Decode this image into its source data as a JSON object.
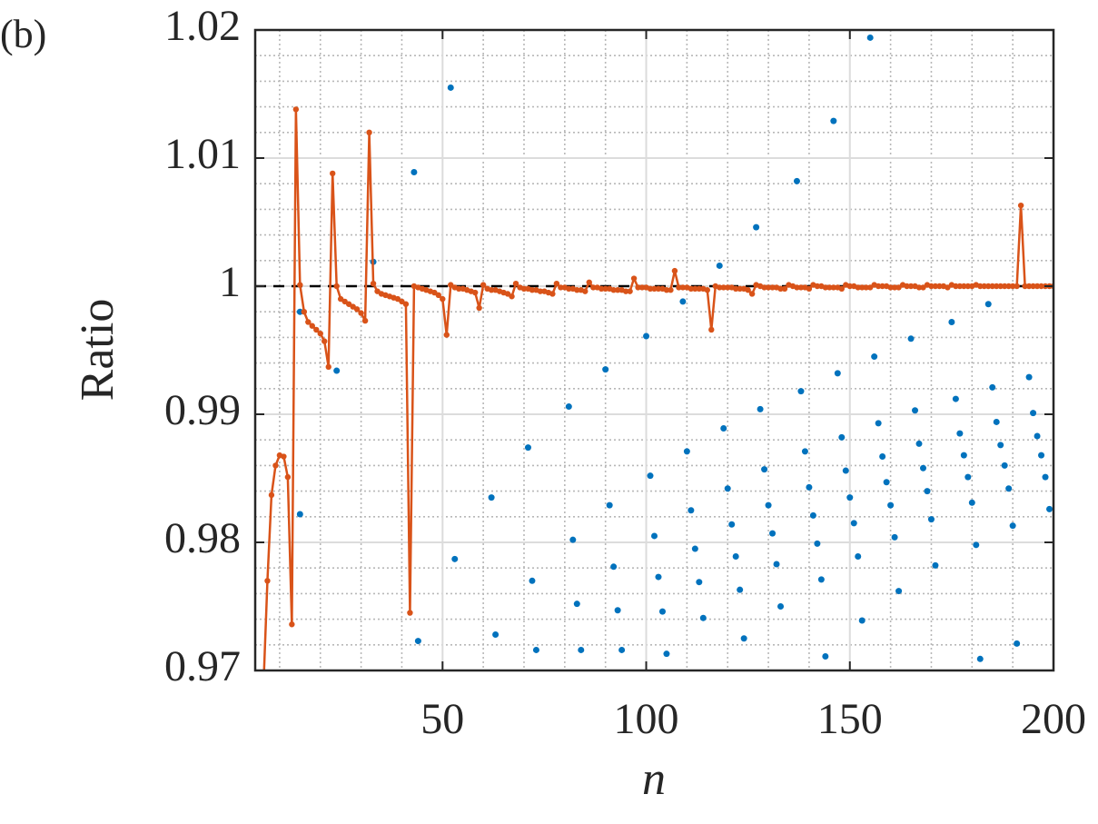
{
  "chart_data": {
    "type": "line",
    "panel_label": "(b)",
    "xlabel": "n",
    "ylabel": "Ratio",
    "xlim": [
      4,
      200
    ],
    "ylim": [
      0.97,
      1.02
    ],
    "xticks": [
      50,
      100,
      150,
      200
    ],
    "yticks": [
      0.97,
      0.98,
      0.99,
      1,
      1.01,
      1.02
    ],
    "grid": true,
    "minor_grid": true,
    "reference_line": {
      "y": 1,
      "color": "#000000",
      "style": "dashed"
    },
    "series": [
      {
        "type": "scatter",
        "color": "#0072bd",
        "x": [
          15,
          15,
          24,
          33,
          43,
          44,
          52,
          53,
          62,
          63,
          71,
          72,
          73,
          81,
          82,
          83,
          84,
          90,
          91,
          92,
          93,
          94,
          100,
          101,
          102,
          103,
          104,
          105,
          109,
          110,
          111,
          112,
          113,
          114,
          118,
          119,
          120,
          121,
          122,
          123,
          124,
          127,
          128,
          129,
          130,
          131,
          132,
          133,
          137,
          138,
          139,
          140,
          141,
          142,
          143,
          144,
          146,
          147,
          148,
          149,
          150,
          151,
          152,
          153,
          155,
          156,
          157,
          158,
          159,
          160,
          161,
          162,
          165,
          166,
          167,
          168,
          169,
          170,
          171,
          175,
          176,
          177,
          178,
          179,
          180,
          181,
          182,
          184,
          185,
          186,
          187,
          188,
          189,
          190,
          191,
          194,
          195,
          196,
          197,
          198,
          199
        ],
        "values": [
          0.998,
          0.9822,
          0.9934,
          1.0019,
          1.0089,
          0.9723,
          1.0155,
          0.9787,
          0.9835,
          0.9728,
          0.9874,
          0.977,
          0.9716,
          0.9906,
          0.9802,
          0.9752,
          0.9716,
          0.9935,
          0.9829,
          0.9781,
          0.9747,
          0.9716,
          0.9961,
          0.9852,
          0.9805,
          0.9773,
          0.9746,
          0.9713,
          0.9988,
          0.9871,
          0.9825,
          0.9795,
          0.9769,
          0.9741,
          1.0016,
          0.9889,
          0.9842,
          0.9814,
          0.9789,
          0.9763,
          0.9725,
          1.0046,
          0.9904,
          0.9857,
          0.9829,
          0.9807,
          0.9783,
          0.975,
          1.0082,
          0.9918,
          0.9871,
          0.9843,
          0.9821,
          0.9799,
          0.9771,
          0.9711,
          1.0129,
          0.9932,
          0.9882,
          0.9856,
          0.9835,
          0.9815,
          0.9789,
          0.9739,
          1.0194,
          0.9945,
          0.9893,
          0.9867,
          0.9847,
          0.9829,
          0.9804,
          0.9762,
          0.9959,
          0.9903,
          0.9877,
          0.9858,
          0.984,
          0.9818,
          0.9782,
          0.9972,
          0.9912,
          0.9885,
          0.9868,
          0.9851,
          0.9831,
          0.9798,
          0.9709,
          0.9986,
          0.9921,
          0.9894,
          0.9876,
          0.986,
          0.9842,
          0.9813,
          0.9721,
          0.9929,
          0.9901,
          0.9883,
          0.9868,
          0.9851,
          0.9826
        ]
      },
      {
        "type": "line",
        "color": "#d95319",
        "x": [
          6,
          7,
          8,
          9,
          10,
          11,
          12,
          13,
          14,
          15,
          16,
          17,
          18,
          19,
          20,
          21,
          22,
          23,
          24,
          25,
          26,
          27,
          28,
          29,
          30,
          31,
          32,
          33,
          34,
          35,
          36,
          37,
          38,
          39,
          40,
          41,
          42,
          43,
          44,
          45,
          46,
          47,
          48,
          49,
          50,
          51,
          52,
          53,
          54,
          55,
          56,
          57,
          58,
          59,
          60,
          61,
          62,
          63,
          64,
          65,
          66,
          67,
          68,
          69,
          70,
          71,
          72,
          73,
          74,
          75,
          76,
          77,
          78,
          79,
          80,
          81,
          82,
          83,
          84,
          85,
          86,
          87,
          88,
          89,
          90,
          91,
          92,
          93,
          94,
          95,
          96,
          97,
          98,
          99,
          100,
          101,
          102,
          103,
          104,
          105,
          106,
          107,
          108,
          109,
          110,
          111,
          112,
          113,
          114,
          115,
          116,
          117,
          118,
          119,
          120,
          121,
          122,
          123,
          124,
          125,
          126,
          127,
          128,
          129,
          130,
          131,
          132,
          133,
          134,
          135,
          136,
          137,
          138,
          139,
          140,
          141,
          142,
          143,
          144,
          145,
          146,
          147,
          148,
          149,
          150,
          151,
          152,
          153,
          154,
          155,
          156,
          157,
          158,
          159,
          160,
          161,
          162,
          163,
          164,
          165,
          166,
          167,
          168,
          169,
          170,
          171,
          172,
          173,
          174,
          175,
          176,
          177,
          178,
          179,
          180,
          181,
          182,
          183,
          184,
          185,
          186,
          187,
          188,
          189,
          190,
          191,
          192,
          193,
          194,
          195,
          196,
          197,
          198,
          199,
          200
        ],
        "values": [
          0.9685,
          0.977,
          0.9837,
          0.986,
          0.9868,
          0.9867,
          0.9851,
          0.9736,
          1.0138,
          1.0001,
          0.998,
          0.9972,
          0.9969,
          0.9966,
          0.9963,
          0.9957,
          0.9937,
          1.0088,
          1.0,
          0.999,
          0.9988,
          0.9986,
          0.9984,
          0.9982,
          0.9979,
          0.9973,
          1.012,
          1.0002,
          0.9996,
          0.9994,
          0.9993,
          0.9992,
          0.9991,
          0.999,
          0.9988,
          0.9986,
          0.9745,
          1.0,
          0.9999,
          0.9998,
          0.9997,
          0.9996,
          0.9995,
          0.9993,
          0.999,
          0.9962,
          1.0001,
          0.9999,
          0.9998,
          0.9998,
          0.9997,
          0.9996,
          0.9995,
          0.9983,
          1.0001,
          0.9998,
          0.9997,
          0.9997,
          0.9996,
          0.9995,
          0.9994,
          0.9992,
          1.0002,
          0.9999,
          0.9998,
          0.9998,
          0.9997,
          0.9997,
          0.9996,
          0.9996,
          0.9995,
          0.9994,
          1.0002,
          0.9999,
          0.9999,
          0.9998,
          0.9998,
          0.9997,
          0.9997,
          0.9996,
          1.0003,
          0.9999,
          0.9999,
          0.9998,
          0.9998,
          0.9998,
          0.9997,
          0.9997,
          0.9997,
          0.9996,
          0.9996,
          1.0006,
          0.9999,
          0.9999,
          0.9999,
          0.9998,
          0.9998,
          0.9998,
          0.9998,
          0.9997,
          0.9997,
          1.0012,
          0.9999,
          0.9999,
          0.9999,
          0.9998,
          0.9998,
          0.9998,
          0.9998,
          0.9997,
          0.9966,
          1.0,
          0.9999,
          0.9999,
          0.9999,
          0.9999,
          0.9998,
          0.9998,
          0.9998,
          0.9997,
          0.9994,
          1.0001,
          1.0,
          0.9999,
          0.9999,
          0.9999,
          0.9999,
          0.9998,
          0.9998,
          1.0001,
          1.0,
          0.9999,
          0.9999,
          0.9999,
          0.9998,
          1.0001,
          1.0,
          1.0,
          0.9999,
          0.9999,
          0.9999,
          0.9999,
          0.9998,
          1.0001,
          1.0,
          1.0,
          0.9999,
          0.9999,
          0.9999,
          0.9999,
          1.0001,
          1.0,
          1.0,
          1.0,
          0.9999,
          0.9999,
          0.9999,
          1.0001,
          1.0,
          1.0,
          1.0,
          0.9999,
          0.9999,
          1.0001,
          1.0,
          1.0,
          1.0,
          1.0,
          0.9999,
          1.0001,
          1.0,
          1.0,
          1.0,
          1.0,
          1.0,
          1.0001,
          1.0,
          1.0,
          1.0,
          1.0,
          1.0,
          1.0,
          1.0,
          1.0,
          1.0,
          1.0,
          1.0063,
          1.0,
          1.0,
          1.0,
          1.0,
          1.0,
          1.0,
          1.0,
          1.0
        ]
      }
    ]
  }
}
